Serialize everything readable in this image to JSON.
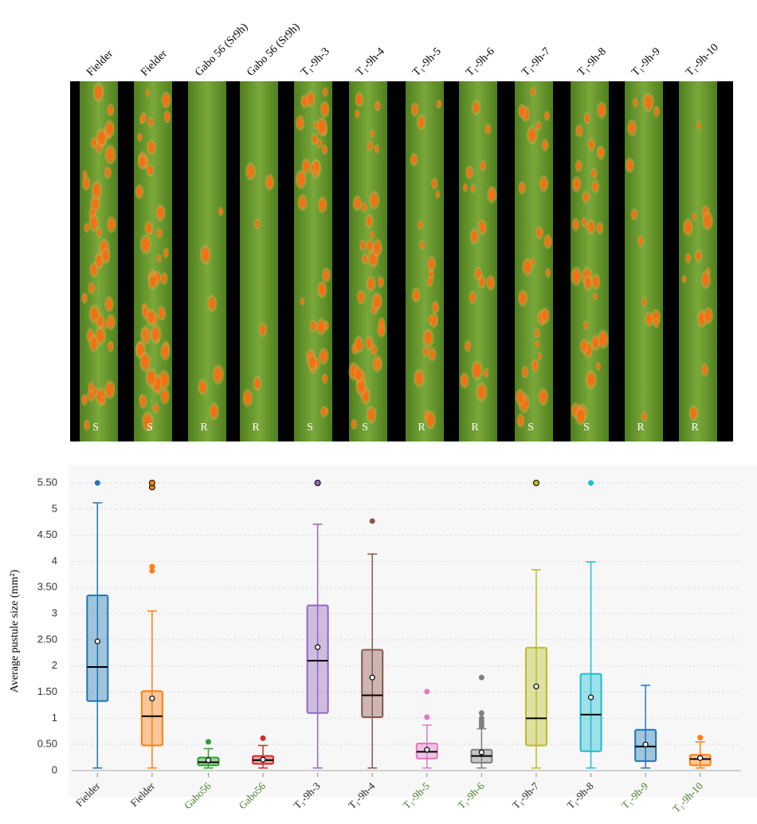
{
  "photo": {
    "labels": [
      "Fielder",
      "Fielder",
      "Gabo 56 (Sr9h)",
      "Gabo 56 (Sr9h)",
      "T₁-9h-3",
      "T₁-9h-4",
      "T₁-9h-5",
      "T₁-9h-6",
      "T₁-9h-7",
      "T₁-9h-8",
      "T₁-9h-9",
      "T₁-9h-10"
    ],
    "ratings": [
      "S",
      "S",
      "R",
      "R",
      "S",
      "S",
      "R",
      "R",
      "S",
      "S",
      "R",
      "R"
    ]
  },
  "chart_data": {
    "type": "box",
    "y_label": "Average pustule size (mm²)",
    "categories": [
      "Fielder",
      "Fielder",
      "Gabo56",
      "Gabo56",
      "T₁-9h-3",
      "T₁-9h-4",
      "T₁-9h-5",
      "T₁-9h-6",
      "T₁-9h-7",
      "T₁-9h-8",
      "T₁-9h-9",
      "T₁-9h-10"
    ],
    "label_colors": [
      "#222222",
      "#222222",
      "#4a7a2a",
      "#4a7a2a",
      "#222222",
      "#222222",
      "#4a7a2a",
      "#4a7a2a",
      "#222222",
      "#222222",
      "#4a7a2a",
      "#4a7a2a"
    ],
    "ylim": [
      0,
      5.5
    ],
    "yticks": [
      0,
      {
        "value": 0.5,
        "label": "0.50"
      },
      1,
      {
        "value": 1.5,
        "label": "1.50"
      },
      2,
      {
        "value": 2.5,
        "label": "2.50"
      },
      3,
      {
        "value": 3.5,
        "label": "3.50"
      },
      4,
      {
        "value": 4.5,
        "label": "4.50"
      },
      5,
      {
        "value": 5.5,
        "label": "5.50"
      }
    ],
    "grid": true,
    "series": [
      {
        "color": "#1f77b4",
        "whisker": [
          0.05,
          5.12
        ],
        "q1": 1.33,
        "median": 1.98,
        "q3": 3.35,
        "mean": 2.47,
        "outliers": [
          5.5
        ]
      },
      {
        "color": "#ff7f0e",
        "whisker": [
          0.05,
          3.05
        ],
        "q1": 0.48,
        "median": 1.04,
        "q3": 1.52,
        "mean": 1.38,
        "outliers": [
          3.82,
          3.9,
          5.42,
          5.5
        ]
      },
      {
        "color": "#2ca02c",
        "whisker": [
          0.05,
          0.42
        ],
        "q1": 0.1,
        "median": 0.16,
        "q3": 0.25,
        "mean": 0.2,
        "outliers": [
          0.55
        ]
      },
      {
        "color": "#d62728",
        "whisker": [
          0.05,
          0.48
        ],
        "q1": 0.13,
        "median": 0.2,
        "q3": 0.28,
        "mean": 0.21,
        "outliers": [
          0.62
        ]
      },
      {
        "color": "#9467bd",
        "whisker": [
          0.05,
          4.71
        ],
        "q1": 1.1,
        "median": 2.1,
        "q3": 3.16,
        "mean": 2.36,
        "outliers": [
          5.5
        ]
      },
      {
        "color": "#8c564b",
        "whisker": [
          0.05,
          4.14
        ],
        "q1": 1.02,
        "median": 1.44,
        "q3": 2.31,
        "mean": 1.78,
        "outliers": [
          4.77
        ]
      },
      {
        "color": "#e377c2",
        "whisker": [
          0.05,
          0.87
        ],
        "q1": 0.23,
        "median": 0.36,
        "q3": 0.52,
        "mean": 0.4,
        "outliers": [
          1.02,
          1.51
        ]
      },
      {
        "color": "#7f7f7f",
        "whisker": [
          0.05,
          0.8
        ],
        "q1": 0.15,
        "median": 0.28,
        "q3": 0.4,
        "mean": 0.35,
        "outliers": [
          0.85,
          0.9,
          0.95,
          1.0,
          1.1,
          1.78
        ]
      },
      {
        "color": "#bcbd22",
        "whisker": [
          0.05,
          3.84
        ],
        "q1": 0.48,
        "median": 1.0,
        "q3": 2.35,
        "mean": 1.61,
        "outliers": [
          5.5
        ]
      },
      {
        "color": "#17becf",
        "whisker": [
          0.05,
          3.99
        ],
        "q1": 0.37,
        "median": 1.07,
        "q3": 1.85,
        "mean": 1.4,
        "outliers": [
          5.5
        ]
      },
      {
        "color": "#1f77b4",
        "whisker": [
          0.05,
          1.63
        ],
        "q1": 0.18,
        "median": 0.46,
        "q3": 0.78,
        "mean": 0.5,
        "outliers": []
      },
      {
        "color": "#ff7f0e",
        "whisker": [
          0.05,
          0.55
        ],
        "q1": 0.1,
        "median": 0.22,
        "q3": 0.3,
        "mean": 0.24,
        "outliers": [
          0.63
        ]
      }
    ]
  }
}
